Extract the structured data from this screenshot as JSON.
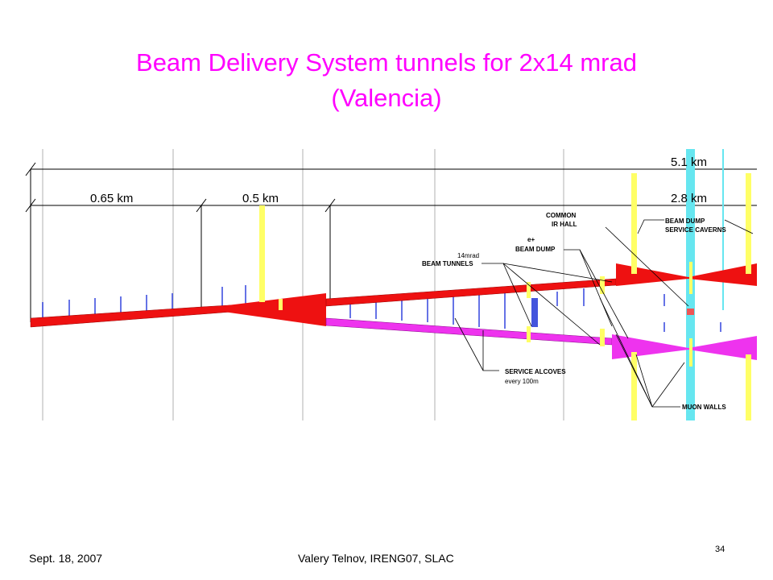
{
  "header": {
    "title": [
      "Beam Delivery System tunnels for 2x14 mrad",
      "(Valencia)"
    ]
  },
  "distances": {
    "total": "5.1 km",
    "first": "0.65 km",
    "second": "0.5 km",
    "third": "2.8 km"
  },
  "labels": {
    "common_ir_hall": [
      "COMMON",
      "IR HALL"
    ],
    "beam_dump_service_caverns": [
      "BEAM DUMP",
      "SERVICE CAVERNS"
    ],
    "beam_tunnels": [
      "14mrad",
      "BEAM TUNNELS"
    ],
    "beam_dump": [
      "e+",
      "BEAM DUMP"
    ],
    "service_alcoves": [
      "SERVICE ALCOVES",
      "every 100m"
    ],
    "muon_walls": [
      "MUON WALLS"
    ]
  },
  "footer": {
    "date": "Sept. 18, 2007",
    "author": "Valery Telnov, IRENG07, SLAC",
    "page": "34"
  }
}
